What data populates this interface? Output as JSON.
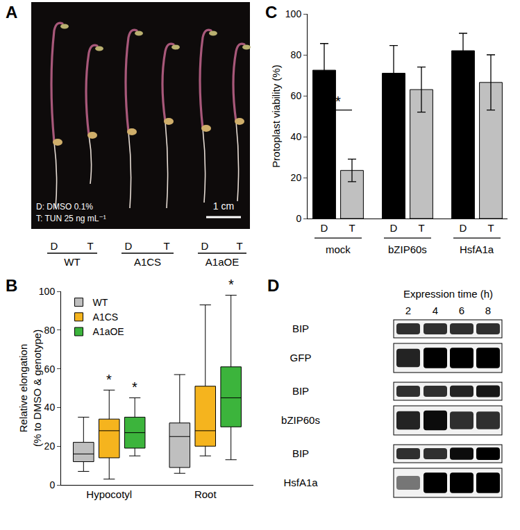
{
  "panel_A": {
    "panel_label": "A",
    "photo_legend": [
      "D: DMSO 0.1%",
      "T: TUN 25 ng mL⁻¹"
    ],
    "scale_bar": "1 cm",
    "lanes": [
      "D",
      "T"
    ],
    "genotypes": [
      "WT",
      "A1CS",
      "A1aOE"
    ]
  },
  "chart_data": [
    {
      "panel_label": "C",
      "type": "bar",
      "ylabel": "Protoplast viability (%)",
      "categories": [
        "D",
        "T",
        "D",
        "T",
        "D",
        "T"
      ],
      "groups": [
        {
          "label": "mock",
          "members": [
            0,
            1
          ]
        },
        {
          "label": "bZIP60s",
          "members": [
            2,
            3
          ]
        },
        {
          "label": "HsfA1a",
          "members": [
            4,
            5
          ]
        }
      ],
      "values": [
        72.5,
        23.5,
        71,
        63,
        82,
        66.5
      ],
      "errors": [
        13,
        5.5,
        13.5,
        11,
        8.5,
        13.5
      ],
      "colors": [
        "#000000",
        "#c0c0c0",
        "#000000",
        "#c0c0c0",
        "#000000",
        "#c0c0c0"
      ],
      "ylim": [
        0,
        100
      ],
      "yticks": [
        0,
        20,
        40,
        60,
        80,
        100
      ],
      "grid": false,
      "annotations": [
        {
          "text": "*",
          "x": [
            0,
            1
          ],
          "y": 53
        }
      ]
    },
    {
      "panel_label": "B",
      "type": "box",
      "ylabel": [
        "Relative elongation",
        "(% to DMSO & genotype)"
      ],
      "categories": [
        "Hypocotyl",
        "Root"
      ],
      "series": [
        {
          "name": "WT",
          "color": "#bfbfbf",
          "lower": [
            7,
            6
          ],
          "q1": [
            12,
            9
          ],
          "median": [
            16,
            25
          ],
          "q3": [
            22,
            32
          ],
          "upper": [
            35,
            57
          ]
        },
        {
          "name": "A1CS",
          "color": "#f5b41e",
          "lower": [
            3,
            15
          ],
          "q1": [
            14,
            20
          ],
          "median": [
            28,
            28
          ],
          "q3": [
            34,
            51
          ],
          "upper": [
            49,
            93
          ]
        },
        {
          "name": "A1aOE",
          "color": "#3cb43c",
          "lower": [
            15,
            13
          ],
          "q1": [
            19,
            30
          ],
          "median": [
            27,
            45
          ],
          "q3": [
            35,
            61
          ],
          "upper": [
            45,
            98
          ]
        }
      ],
      "ylim": [
        0,
        100
      ],
      "yticks": [
        0,
        20,
        40,
        60,
        80,
        100
      ],
      "grid": false,
      "legend": "top-left",
      "annotations": [
        {
          "text": "*",
          "category": "Hypocotyl",
          "series": "A1CS",
          "y": 50
        },
        {
          "text": "*",
          "category": "Hypocotyl",
          "series": "A1aOE",
          "y": 46
        },
        {
          "text": "*",
          "category": "Root",
          "series": "A1aOE",
          "y": 99
        }
      ]
    }
  ],
  "panel_D": {
    "panel_label": "D",
    "header": "Expression time (h)",
    "lanes": [
      2,
      4,
      6,
      8
    ],
    "rows": [
      {
        "label": "BIP",
        "band_intensity": [
          0.8,
          0.8,
          0.8,
          0.8
        ]
      },
      {
        "label": "GFP",
        "band_intensity": [
          0.85,
          1,
          1,
          1
        ]
      },
      {
        "label": "BIP",
        "band_intensity": [
          0.8,
          0.8,
          0.85,
          0.9
        ]
      },
      {
        "label": "bZIP60s",
        "band_intensity": [
          0.85,
          0.95,
          0.8,
          0.8
        ]
      },
      {
        "label": "BIP",
        "band_intensity": [
          0.8,
          0.8,
          0.95,
          1
        ]
      },
      {
        "label": "HsfA1a",
        "band_intensity": [
          0.5,
          1,
          1,
          1
        ]
      }
    ]
  }
}
